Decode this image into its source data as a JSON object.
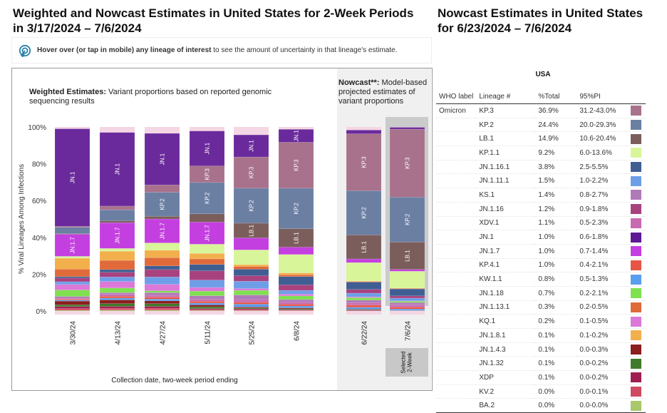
{
  "left_title": "Weighted and Nowcast Estimates in United States for 2-Week Periods in 3/17/2024 – 7/6/2024",
  "right_title": "Nowcast Estimates in United States for 6/23/2024 – 7/6/2024",
  "info": {
    "bold": "Hover over (or tap in mobile) any lineage of interest",
    "rest": " to see the amount of uncertainty in that lineage's estimate.",
    "icon": "tap-icon"
  },
  "weighted_desc": {
    "bold": "Weighted Estimates:",
    "rest": " Variant proportions based on reported genomic sequencing results"
  },
  "nowcast_desc": {
    "bold": "Nowcast**:",
    "rest": " Model-based projected estimates of variant proportions"
  },
  "selected_tag": "Selected\n2-Week",
  "table": {
    "region": "USA",
    "headers": [
      "WHO label",
      "Lineage #",
      "%Total",
      "95%PI"
    ],
    "who_label": "Omicron",
    "rows": [
      [
        "KP.3",
        "36.9%",
        "31.2-43.0%",
        "#a8728c"
      ],
      [
        "KP.2",
        "24.4%",
        "20.0-29.3%",
        "#6b7fa3"
      ],
      [
        "LB.1",
        "14.9%",
        "10.6-20.4%",
        "#7b5e5c"
      ],
      [
        "KP.1.1",
        "9.2%",
        "6.0-13.6%",
        "#d8f59a"
      ],
      [
        "JN.1.16.1",
        "3.8%",
        "2.5-5.5%",
        "#3f5f93"
      ],
      [
        "JN.1.11.1",
        "1.5%",
        "1.0-2.2%",
        "#6f9ee8"
      ],
      [
        "KS.1",
        "1.4%",
        "0.8-2.7%",
        "#b07ab8"
      ],
      [
        "JN.1.16",
        "1.2%",
        "0.9-1.8%",
        "#a8427f"
      ],
      [
        "XDV.1",
        "1.1%",
        "0.5-2.3%",
        "#c86ab0"
      ],
      [
        "JN.1",
        "1.0%",
        "0.6-1.8%",
        "#5c1a94"
      ],
      [
        "JN.1.7",
        "1.0%",
        "0.7-1.4%",
        "#c43fe0"
      ],
      [
        "KP.4.1",
        "1.0%",
        "0.4-2.1%",
        "#e85545"
      ],
      [
        "KW.1.1",
        "0.8%",
        "0.5-1.3%",
        "#5a9ef0"
      ],
      [
        "JN.1.18",
        "0.7%",
        "0.2-2.1%",
        "#7fe050"
      ],
      [
        "JN.1.13.1",
        "0.3%",
        "0.2-0.5%",
        "#e06a3a"
      ],
      [
        "KQ.1",
        "0.2%",
        "0.1-0.5%",
        "#dc78d8"
      ],
      [
        "JN.1.8.1",
        "0.1%",
        "0.1-0.2%",
        "#f2b04c"
      ],
      [
        "JN.1.4.3",
        "0.1%",
        "0.0-0.3%",
        "#8b1e1e"
      ],
      [
        "JN.1.32",
        "0.1%",
        "0.0-0.2%",
        "#3e7a2a"
      ],
      [
        "XDP",
        "0.1%",
        "0.0-0.2%",
        "#a01e52"
      ],
      [
        "KV.2",
        "0.0%",
        "0.0-0.1%",
        "#d04a62"
      ],
      [
        "BA.2",
        "0.0%",
        "0.0-0.0%",
        "#a8c86a"
      ]
    ]
  },
  "chart_data": {
    "type": "bar",
    "stacked": true,
    "ylabel": "% Viral Lineages Among Infections",
    "xlabel": "Collection date, two-week period ending",
    "ylim": [
      0,
      100
    ],
    "yticks": [
      "0%",
      "20%",
      "40%",
      "60%",
      "80%",
      "100%"
    ],
    "categories": [
      "3/30/24",
      "4/13/24",
      "4/27/24",
      "5/11/24",
      "5/25/24",
      "6/8/24",
      "6/22/24",
      "7/6/24"
    ],
    "nowcast_categories": [
      "6/22/24",
      "7/6/24"
    ],
    "selected": "7/6/24",
    "series": [
      {
        "name": "JN.1",
        "color": "#6a2a9c",
        "values": [
          53,
          40,
          28,
          19,
          12,
          7,
          2,
          1.0
        ]
      },
      {
        "name": "KP.3",
        "color": "#a8728c",
        "values": [
          0.5,
          2,
          4,
          9,
          17,
          25,
          31,
          36.9
        ]
      },
      {
        "name": "KP.2",
        "color": "#6b7fa3",
        "values": [
          3.5,
          6,
          13,
          17,
          19,
          22,
          24,
          24.4
        ]
      },
      {
        "name": "LB.1",
        "color": "#7b5e5c",
        "values": [
          0.3,
          1,
          1.5,
          4.5,
          8,
          10,
          13,
          14.9
        ]
      },
      {
        "name": "JN.1.7",
        "color": "#c43fe0",
        "values": [
          12,
          14,
          13,
          12,
          6.5,
          4,
          2,
          1.0
        ]
      },
      {
        "name": "KP.1.1",
        "color": "#d8f59a",
        "values": [
          1,
          1.5,
          4,
          5,
          8,
          10,
          10,
          9.2
        ]
      },
      {
        "name": "JN.1.8.1",
        "color": "#f2b04c",
        "values": [
          6,
          5,
          4,
          3,
          1,
          1,
          0.3,
          0.1
        ]
      },
      {
        "name": "JN.1.13.1",
        "color": "#e06a3a",
        "values": [
          4,
          5,
          4.5,
          3,
          1.5,
          1,
          0.3,
          0.3
        ]
      },
      {
        "name": "JN.1.16.1",
        "color": "#3f5f93",
        "values": [
          0.8,
          1.5,
          2,
          3.5,
          3.5,
          4.5,
          4,
          3.8
        ]
      },
      {
        "name": "JN.1.16",
        "color": "#a8427f",
        "values": [
          2,
          2.5,
          4,
          5,
          3,
          3,
          2,
          1.2
        ]
      },
      {
        "name": "JN.1.11.1",
        "color": "#6f9ee8",
        "values": [
          1.5,
          2.5,
          4,
          4,
          4,
          2,
          2,
          1.5
        ]
      },
      {
        "name": "KQ.1",
        "color": "#dc78d8",
        "values": [
          3,
          3.5,
          3.5,
          2,
          1,
          1,
          0.5,
          0.2
        ]
      },
      {
        "name": "JN.1.18",
        "color": "#7fe050",
        "values": [
          3.5,
          2.5,
          1,
          2.5,
          2.5,
          2,
          1.3,
          0.7
        ]
      },
      {
        "name": "KS.1",
        "color": "#b07ab8",
        "values": [
          1,
          1,
          1.5,
          2,
          2.5,
          1.5,
          1.5,
          1.4
        ]
      },
      {
        "name": "XDV.1",
        "color": "#c86ab0",
        "values": [
          0.5,
          1,
          1,
          1,
          1.5,
          1,
          1.2,
          1.1
        ]
      },
      {
        "name": "KP.4.1",
        "color": "#e85545",
        "values": [
          0.5,
          1,
          1,
          1,
          1,
          1,
          1.2,
          1.0
        ]
      },
      {
        "name": "KW.1.1",
        "color": "#5a9ef0",
        "values": [
          0.5,
          1,
          1,
          1,
          1.5,
          1,
          1,
          0.8
        ]
      },
      {
        "name": "JN.1.4.3",
        "color": "#8b1e1e",
        "values": [
          2,
          2,
          1.5,
          1,
          0.5,
          0.5,
          0.3,
          0.1
        ]
      },
      {
        "name": "JN.1.32",
        "color": "#3e7a2a",
        "values": [
          1,
          1.5,
          1.5,
          1,
          0.5,
          0.5,
          0.3,
          0.1
        ]
      },
      {
        "name": "XDP",
        "color": "#a01e52",
        "values": [
          1,
          1,
          1,
          0.5,
          0.5,
          0.3,
          0.3,
          0.1
        ]
      },
      {
        "name": "KV.2",
        "color": "#d04a62",
        "values": [
          1,
          1,
          1,
          0.5,
          0.5,
          0.3,
          0.1,
          0.0
        ]
      },
      {
        "name": "BA.2",
        "color": "#a8c86a",
        "values": [
          0.4,
          0.5,
          0.5,
          0.3,
          0.2,
          0.1,
          0,
          0.0
        ]
      }
    ],
    "labeled_lineages": [
      "JN.1",
      "KP.3",
      "KP.2",
      "LB.1",
      "JN.1.7"
    ]
  }
}
